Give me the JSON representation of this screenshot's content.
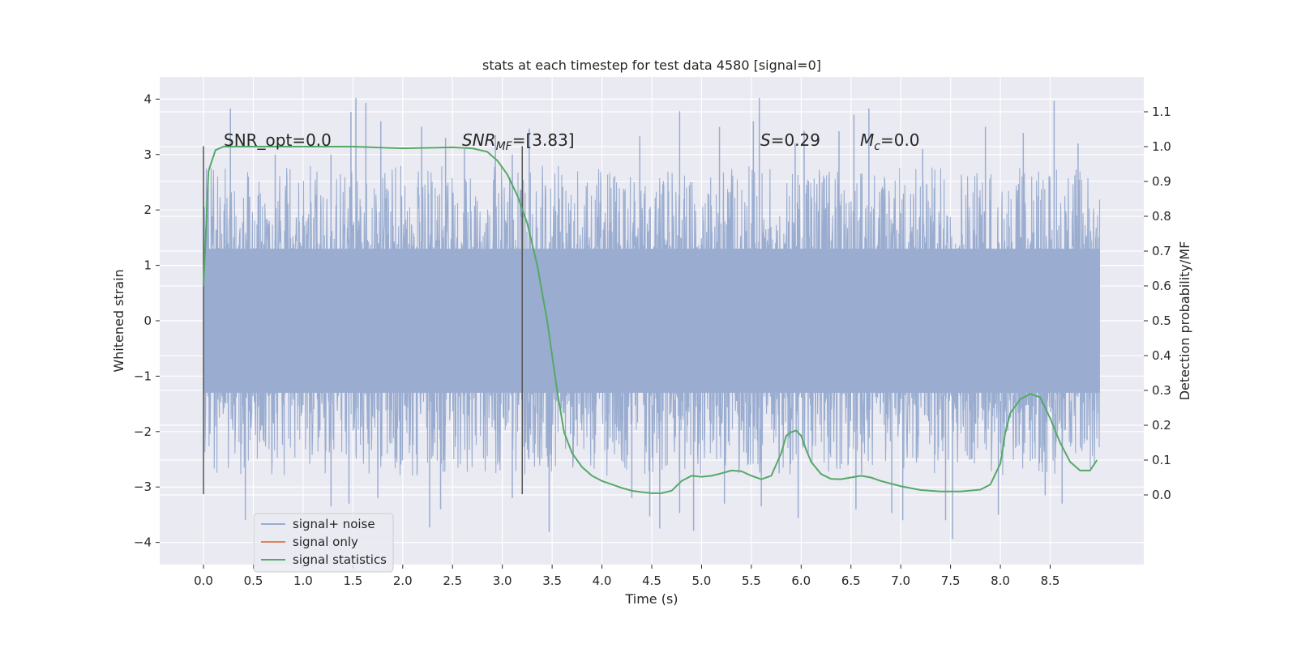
{
  "chart_data": {
    "type": "line",
    "title": "stats at each timestep for test data 4580 [signal=0]",
    "xlabel": "Time (s)",
    "ylabel": "Whitened strain",
    "ylabel_right": "Detection probability/MF",
    "xlim": [
      -0.44,
      9.44
    ],
    "ylim": [
      -4.4,
      4.4
    ],
    "ylim_right": [
      -0.2,
      1.2
    ],
    "xticks": [
      "0.0",
      "0.5",
      "1.0",
      "1.5",
      "2.0",
      "2.5",
      "3.0",
      "3.5",
      "4.0",
      "4.5",
      "5.0",
      "5.5",
      "6.0",
      "6.5",
      "7.0",
      "7.5",
      "8.0",
      "8.5"
    ],
    "yticks_left": [
      "−4",
      "−3",
      "−2",
      "−1",
      "0",
      "1",
      "2",
      "3",
      "4"
    ],
    "yticks_right": [
      "0.0",
      "0.1",
      "0.2",
      "0.3",
      "0.4",
      "0.5",
      "0.6",
      "0.7",
      "0.8",
      "0.9",
      "1.0",
      "1.1"
    ],
    "grid": true,
    "legend_placement": "lower-left",
    "annotations": {
      "snr_opt": "SNR_opt=0.0",
      "snr_mf_main": "SNR",
      "snr_mf_sub": "MF",
      "snr_mf_value": "=[3.83]",
      "s_var": "S",
      "s_value": "=0.29",
      "mc_var": "M",
      "mc_sub": "c",
      "mc_value": "=0.0"
    },
    "vlines": [
      {
        "x": 0.0,
        "y_range": [
          -3.13,
          3.15
        ]
      },
      {
        "x": 3.2,
        "y_range": [
          -3.13,
          3.15
        ]
      }
    ],
    "series": [
      {
        "name": "signal+ noise",
        "color": "#9aadd0",
        "t_range": [
          0.0,
          9.0
        ],
        "band_core": 1.3,
        "spikes_up": [
          [
            0.27,
            3.83
          ],
          [
            0.45,
            2.6
          ],
          [
            0.72,
            3.0
          ],
          [
            1.28,
            3.0
          ],
          [
            1.48,
            3.77
          ],
          [
            1.53,
            4.02
          ],
          [
            1.63,
            3.93
          ],
          [
            1.78,
            3.6
          ],
          [
            2.19,
            3.5
          ],
          [
            2.43,
            3.3
          ],
          [
            2.62,
            3.1
          ],
          [
            2.93,
            3.35
          ],
          [
            3.1,
            3.0
          ],
          [
            3.27,
            3.47
          ],
          [
            4.38,
            3.33
          ],
          [
            4.78,
            3.78
          ],
          [
            5.18,
            3.5
          ],
          [
            5.52,
            3.6
          ],
          [
            5.58,
            4.02
          ],
          [
            5.94,
            3.2
          ],
          [
            6.03,
            3.43
          ],
          [
            6.38,
            3.42
          ],
          [
            6.53,
            3.72
          ],
          [
            6.68,
            3.83
          ],
          [
            7.22,
            3.1
          ],
          [
            7.85,
            3.5
          ],
          [
            8.23,
            3.39
          ],
          [
            8.54,
            3.97
          ],
          [
            8.78,
            3.2
          ]
        ],
        "spikes_down": [
          [
            0.42,
            -3.6
          ],
          [
            1.28,
            -3.35
          ],
          [
            1.46,
            -3.3
          ],
          [
            1.75,
            -3.2
          ],
          [
            2.27,
            -3.73
          ],
          [
            2.38,
            -3.4
          ],
          [
            3.1,
            -3.2
          ],
          [
            3.47,
            -3.81
          ],
          [
            4.3,
            -3.2
          ],
          [
            4.48,
            -3.53
          ],
          [
            4.58,
            -3.75
          ],
          [
            4.78,
            -3.47
          ],
          [
            4.92,
            -3.79
          ],
          [
            5.23,
            -3.3
          ],
          [
            5.6,
            -3.35
          ],
          [
            5.97,
            -3.56
          ],
          [
            6.55,
            -3.4
          ],
          [
            6.91,
            -3.47
          ],
          [
            7.02,
            -3.6
          ],
          [
            7.45,
            -3.6
          ],
          [
            7.52,
            -3.94
          ],
          [
            7.98,
            -3.5
          ],
          [
            8.45,
            -3.15
          ],
          [
            8.62,
            -3.3
          ]
        ]
      },
      {
        "name": "signal only",
        "color": "#dd8452",
        "x": [],
        "y": []
      },
      {
        "name": "signal statistics",
        "color": "#55a868",
        "axis": "right",
        "x": [
          0.0,
          0.05,
          0.12,
          0.2,
          0.3,
          0.5,
          1.0,
          1.5,
          2.0,
          2.5,
          2.7,
          2.85,
          2.95,
          3.05,
          3.15,
          3.25,
          3.35,
          3.45,
          3.55,
          3.62,
          3.7,
          3.8,
          3.9,
          4.0,
          4.1,
          4.2,
          4.3,
          4.4,
          4.5,
          4.6,
          4.7,
          4.8,
          4.9,
          5.0,
          5.1,
          5.2,
          5.3,
          5.4,
          5.5,
          5.6,
          5.7,
          5.8,
          5.85,
          5.9,
          5.95,
          6.0,
          6.05,
          6.1,
          6.2,
          6.3,
          6.4,
          6.5,
          6.6,
          6.7,
          6.8,
          7.0,
          7.2,
          7.4,
          7.6,
          7.8,
          7.9,
          8.0,
          8.05,
          8.1,
          8.2,
          8.3,
          8.4,
          8.5,
          8.6,
          8.7,
          8.8,
          8.9,
          8.97
        ],
        "y": [
          0.6,
          0.93,
          0.99,
          1.0,
          1.0,
          1.0,
          1.0,
          1.0,
          0.995,
          0.998,
          0.995,
          0.985,
          0.96,
          0.92,
          0.86,
          0.78,
          0.66,
          0.5,
          0.3,
          0.18,
          0.12,
          0.08,
          0.055,
          0.04,
          0.03,
          0.02,
          0.012,
          0.008,
          0.005,
          0.005,
          0.012,
          0.04,
          0.055,
          0.052,
          0.055,
          0.062,
          0.07,
          0.068,
          0.055,
          0.045,
          0.055,
          0.12,
          0.17,
          0.18,
          0.185,
          0.17,
          0.13,
          0.095,
          0.06,
          0.046,
          0.045,
          0.05,
          0.055,
          0.05,
          0.04,
          0.025,
          0.014,
          0.01,
          0.01,
          0.015,
          0.03,
          0.09,
          0.18,
          0.235,
          0.275,
          0.29,
          0.28,
          0.22,
          0.15,
          0.095,
          0.07,
          0.07,
          0.1
        ]
      }
    ]
  }
}
